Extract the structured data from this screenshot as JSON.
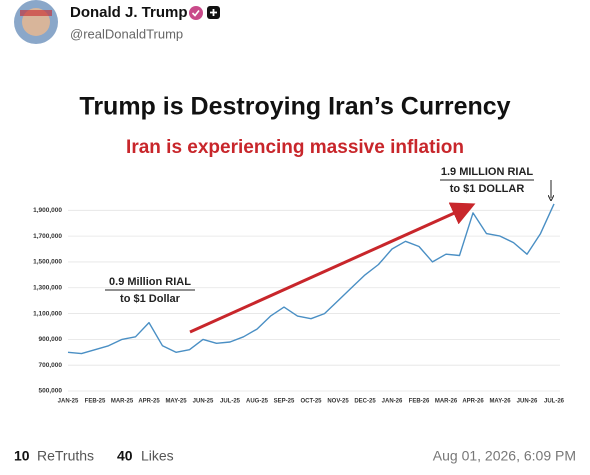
{
  "post": {
    "author": "Donald J. Trump",
    "handle": "@realDonaldTrump"
  },
  "chart_data": {
    "type": "line",
    "title": "Trump is Destroying Iran’s Currency",
    "subtitle": "Iran is experiencing massive inflation",
    "categories": [
      "JAN-25",
      null,
      "FEB-25",
      null,
      "MAR-25",
      null,
      "APR-25",
      null,
      "MAY-25",
      null,
      "JUN-25",
      null,
      "JUL-25",
      null,
      "AUG-25",
      null,
      "SEP-25",
      null,
      "OCT-25",
      null,
      "NOV-25",
      null,
      "DEC-25",
      null,
      "JAN-26",
      null,
      "FEB-26",
      null,
      "MAR-26",
      null,
      "APR-26",
      null,
      "MAY-26",
      null,
      "JUN-26",
      null,
      "JUL-26"
    ],
    "values": [
      800000,
      790000,
      820000,
      850000,
      900000,
      920000,
      1030000,
      850000,
      800000,
      820000,
      900000,
      870000,
      880000,
      920000,
      980000,
      1080000,
      1150000,
      1080000,
      1060000,
      1100000,
      1200000,
      1300000,
      1400000,
      1480000,
      1600000,
      1660000,
      1620000,
      1500000,
      1560000,
      1550000,
      1880000,
      1720000,
      1700000,
      1650000,
      1560000,
      1720000,
      1950000
    ],
    "color": "#4a8fc4",
    "ylim": [
      500000,
      1980000
    ],
    "yticks": [
      {
        "value": 500000,
        "label": "500,000"
      },
      {
        "value": 700000,
        "label": "700,000"
      },
      {
        "value": 900000,
        "label": "900,000"
      },
      {
        "value": 1100000,
        "label": "1,100,000"
      },
      {
        "value": 1300000,
        "label": "1,300,000"
      },
      {
        "value": 1500000,
        "label": "1,500,000"
      },
      {
        "value": 1700000,
        "label": "1,700,000"
      },
      {
        "value": 1900000,
        "label": "1,900,000"
      }
    ],
    "grid": true,
    "annotations": [
      "0.9 Million RIAL",
      "to $1 Dollar",
      "1.9 MILLION RIAL",
      "to $1 DOLLAR"
    ]
  },
  "footer": {
    "retruths": 10,
    "retruths_label": "ReTruths",
    "likes": 40,
    "likes_label": "Likes",
    "timestamp": "Aug 01, 2026, 6:09 PM"
  }
}
